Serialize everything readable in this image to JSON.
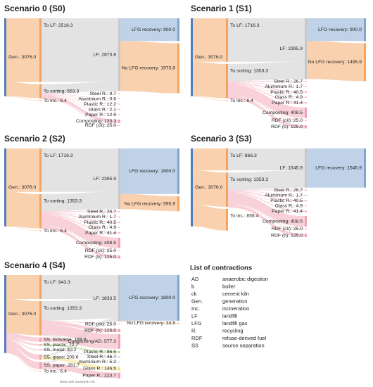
{
  "chart_data": [
    {
      "type": "sankey",
      "title": "Scenario 0 (S0)",
      "nodes": [
        {
          "label": "Gen.: 3076.0",
          "value": 3076.0,
          "color": "#4f7fbf"
        },
        {
          "label": "To LF: 2516.3",
          "value": 2516.3,
          "color": "#f4a460"
        },
        {
          "label": "To sorting: 553.3",
          "value": 553.3,
          "color": "#f4a460"
        },
        {
          "label": "To inc.: 6.4",
          "value": 6.4,
          "color": "#f4a460"
        },
        {
          "label": "LF: 2873.8",
          "value": 2873.8,
          "color": "#c8c8c8"
        },
        {
          "label": "LFG recovery: 900.0",
          "value": 900.0,
          "color": "#7fa6cf"
        },
        {
          "label": "No LFG recovery: 1973.8",
          "value": 1973.8,
          "color": "#f4a460"
        },
        {
          "label": "Steel R.: 9.7",
          "value": 9.7,
          "color": "#f2a3b3"
        },
        {
          "label": "Aluminium R.: 0.6",
          "value": 0.6,
          "color": "#f2a3b3"
        },
        {
          "label": "Plastic R.: 12.2",
          "value": 12.2,
          "color": "#f2a3b3"
        },
        {
          "label": "Glass R.: 2.1",
          "value": 2.1,
          "color": "#f2a3b3"
        },
        {
          "label": "Paper R.: 12.9",
          "value": 12.9,
          "color": "#f2a3b3"
        },
        {
          "label": "Composting: 133.3",
          "value": 133.3,
          "color": "#f2a3b3"
        },
        {
          "label": "RDF (ck): 25.0",
          "value": 25.0,
          "color": "#f2a3b3"
        }
      ],
      "links": [
        {
          "source": 0,
          "target": 1,
          "value": 2516.3
        },
        {
          "source": 0,
          "target": 2,
          "value": 553.3
        },
        {
          "source": 0,
          "target": 3,
          "value": 6.4
        },
        {
          "source": 1,
          "target": 4,
          "value": 2516.3
        },
        {
          "source": 2,
          "target": 4,
          "value": 357.5
        },
        {
          "source": 2,
          "target": 7,
          "value": 9.7
        },
        {
          "source": 2,
          "target": 8,
          "value": 0.6
        },
        {
          "source": 2,
          "target": 9,
          "value": 12.2
        },
        {
          "source": 2,
          "target": 10,
          "value": 2.1
        },
        {
          "source": 2,
          "target": 11,
          "value": 12.9
        },
        {
          "source": 2,
          "target": 12,
          "value": 133.3
        },
        {
          "source": 2,
          "target": 13,
          "value": 25.0
        },
        {
          "source": 4,
          "target": 5,
          "value": 900.0
        },
        {
          "source": 4,
          "target": 6,
          "value": 1973.8
        }
      ]
    },
    {
      "type": "sankey",
      "title": "Scenario 1 (S1)",
      "nodes": [
        {
          "label": "Gen.: 3076.0",
          "value": 3076.0,
          "color": "#4f7fbf"
        },
        {
          "label": "To LF: 1716.3",
          "value": 1716.3,
          "color": "#f4a460"
        },
        {
          "label": "To sorting: 1353.3",
          "value": 1353.3,
          "color": "#f4a460"
        },
        {
          "label": "To inc.: 6.4",
          "value": 6.4,
          "color": "#f4a460"
        },
        {
          "label": "LF: 2395.9",
          "value": 2395.9,
          "color": "#c8c8c8"
        },
        {
          "label": "LFG recovery: 900.0",
          "value": 900.0,
          "color": "#7fa6cf"
        },
        {
          "label": "No LFG recovery: 1495.9",
          "value": 1495.9,
          "color": "#f4a460"
        },
        {
          "label": "Steel R.: 26.7",
          "value": 26.7,
          "color": "#f2a3b3"
        },
        {
          "label": "Aluminium R.: 1.7",
          "value": 1.7,
          "color": "#f2a3b3"
        },
        {
          "label": "Plastic R.: 40.5",
          "value": 40.5,
          "color": "#f2a3b3"
        },
        {
          "label": "Glass R.: 4.9",
          "value": 4.9,
          "color": "#f2a3b3"
        },
        {
          "label": "Paper R.: 41.4",
          "value": 41.4,
          "color": "#f2a3b3"
        },
        {
          "label": "Composting: 408.5",
          "value": 408.5,
          "color": "#f2a3b3"
        },
        {
          "label": "RDF (ck): 25.0",
          "value": 25.0,
          "color": "#f2a3b3"
        },
        {
          "label": "RDF (b): 125.0",
          "value": 125.0,
          "color": "#f2a3b3"
        }
      ],
      "links": [
        {
          "source": 0,
          "target": 1,
          "value": 1716.3
        },
        {
          "source": 0,
          "target": 2,
          "value": 1353.3
        },
        {
          "source": 0,
          "target": 3,
          "value": 6.4
        },
        {
          "source": 1,
          "target": 4,
          "value": 1716.3
        },
        {
          "source": 2,
          "target": 4,
          "value": 679.6
        },
        {
          "source": 2,
          "target": 7,
          "value": 26.7
        },
        {
          "source": 2,
          "target": 8,
          "value": 1.7
        },
        {
          "source": 2,
          "target": 9,
          "value": 40.5
        },
        {
          "source": 2,
          "target": 10,
          "value": 4.9
        },
        {
          "source": 2,
          "target": 11,
          "value": 41.4
        },
        {
          "source": 2,
          "target": 12,
          "value": 408.5
        },
        {
          "source": 2,
          "target": 13,
          "value": 25.0
        },
        {
          "source": 2,
          "target": 14,
          "value": 125.0
        },
        {
          "source": 4,
          "target": 5,
          "value": 900.0
        },
        {
          "source": 4,
          "target": 6,
          "value": 1495.9
        }
      ]
    },
    {
      "type": "sankey",
      "title": "Scenario 2 (S2)",
      "nodes": [
        {
          "label": "Gen.: 3076.0",
          "value": 3076.0,
          "color": "#4f7fbf"
        },
        {
          "label": "To LF: 1716.3",
          "value": 1716.3,
          "color": "#f4a460"
        },
        {
          "label": "To sorting: 1353.3",
          "value": 1353.3,
          "color": "#f4a460"
        },
        {
          "label": "To inc.: 6.4",
          "value": 6.4,
          "color": "#f4a460"
        },
        {
          "label": "LF: 2395.9",
          "value": 2395.9,
          "color": "#c8c8c8"
        },
        {
          "label": "LFG recovery: 1800.0",
          "value": 1800.0,
          "color": "#7fa6cf"
        },
        {
          "label": "No LFG recovery: 595.9",
          "value": 595.9,
          "color": "#f4a460"
        },
        {
          "label": "Steel R.: 26.7",
          "value": 26.7,
          "color": "#f2a3b3"
        },
        {
          "label": "Aluminium R.: 1.7",
          "value": 1.7,
          "color": "#f2a3b3"
        },
        {
          "label": "Plastic R.: 40.5",
          "value": 40.5,
          "color": "#f2a3b3"
        },
        {
          "label": "Glass R.: 4.9",
          "value": 4.9,
          "color": "#f2a3b3"
        },
        {
          "label": "Paper R.: 41.4",
          "value": 41.4,
          "color": "#f2a3b3"
        },
        {
          "label": "Composting: 408.5",
          "value": 408.5,
          "color": "#f2a3b3"
        },
        {
          "label": "RDF (ck): 25.0",
          "value": 25.0,
          "color": "#f2a3b3"
        },
        {
          "label": "RDF (b): 125.0",
          "value": 125.0,
          "color": "#f2a3b3"
        }
      ],
      "links": [
        {
          "source": 0,
          "target": 1,
          "value": 1716.3
        },
        {
          "source": 0,
          "target": 2,
          "value": 1353.3
        },
        {
          "source": 0,
          "target": 3,
          "value": 6.4
        },
        {
          "source": 1,
          "target": 4,
          "value": 1716.3
        },
        {
          "source": 2,
          "target": 4,
          "value": 679.6
        },
        {
          "source": 2,
          "target": 7,
          "value": 26.7
        },
        {
          "source": 2,
          "target": 8,
          "value": 1.7
        },
        {
          "source": 2,
          "target": 9,
          "value": 40.5
        },
        {
          "source": 2,
          "target": 10,
          "value": 4.9
        },
        {
          "source": 2,
          "target": 11,
          "value": 41.4
        },
        {
          "source": 2,
          "target": 12,
          "value": 408.5
        },
        {
          "source": 2,
          "target": 13,
          "value": 25.0
        },
        {
          "source": 2,
          "target": 14,
          "value": 125.0
        },
        {
          "source": 4,
          "target": 5,
          "value": 1800.0
        },
        {
          "source": 4,
          "target": 6,
          "value": 595.9
        }
      ]
    },
    {
      "type": "sankey",
      "title": "Scenario 3 (S3)",
      "nodes": [
        {
          "label": "Gen.: 3076.0",
          "value": 3076.0,
          "color": "#4f7fbf"
        },
        {
          "label": "To LF: 866.3",
          "value": 866.3,
          "color": "#f4a460"
        },
        {
          "label": "To sorting: 1353.3",
          "value": 1353.3,
          "color": "#f4a460"
        },
        {
          "label": "To inc.: 856.4",
          "value": 856.4,
          "color": "#f4a460"
        },
        {
          "label": "LF: 1545.9",
          "value": 1545.9,
          "color": "#c8c8c8"
        },
        {
          "label": "LFG recovery: 1545.9",
          "value": 1545.9,
          "color": "#7fa6cf"
        },
        {
          "label": "Steel R.: 26.7",
          "value": 26.7,
          "color": "#f2a3b3"
        },
        {
          "label": "Aluminium R.: 1.7",
          "value": 1.7,
          "color": "#f2a3b3"
        },
        {
          "label": "Plastic R.: 40.5",
          "value": 40.5,
          "color": "#f2a3b3"
        },
        {
          "label": "Glass R.: 4.9",
          "value": 4.9,
          "color": "#f2a3b3"
        },
        {
          "label": "Paper R.: 41.4",
          "value": 41.4,
          "color": "#f2a3b3"
        },
        {
          "label": "Composting: 408.5",
          "value": 408.5,
          "color": "#f2a3b3"
        },
        {
          "label": "RDF (ck): 25.0",
          "value": 25.0,
          "color": "#f2a3b3"
        },
        {
          "label": "RDF (b): 125.0",
          "value": 125.0,
          "color": "#f2a3b3"
        }
      ],
      "links": [
        {
          "source": 0,
          "target": 1,
          "value": 866.3
        },
        {
          "source": 0,
          "target": 2,
          "value": 1353.3
        },
        {
          "source": 0,
          "target": 3,
          "value": 856.4
        },
        {
          "source": 1,
          "target": 4,
          "value": 866.3
        },
        {
          "source": 2,
          "target": 4,
          "value": 679.6
        },
        {
          "source": 2,
          "target": 6,
          "value": 26.7
        },
        {
          "source": 2,
          "target": 7,
          "value": 1.7
        },
        {
          "source": 2,
          "target": 8,
          "value": 40.5
        },
        {
          "source": 2,
          "target": 9,
          "value": 4.9
        },
        {
          "source": 2,
          "target": 10,
          "value": 41.4
        },
        {
          "source": 2,
          "target": 11,
          "value": 408.5
        },
        {
          "source": 2,
          "target": 12,
          "value": 25.0
        },
        {
          "source": 2,
          "target": 13,
          "value": 125.0
        },
        {
          "source": 4,
          "target": 5,
          "value": 1545.9
        }
      ]
    },
    {
      "type": "sankey",
      "title": "Scenario 4 (S4)",
      "credit": "Made with SankeyMATIC",
      "nodes": [
        {
          "label": "Gen.: 3076.0",
          "value": 3076.0,
          "color": "#4f7fbf"
        },
        {
          "label": "To LF: 943.3",
          "value": 943.3,
          "color": "#f4a460"
        },
        {
          "label": "To sorting: 1353.3",
          "value": 1353.3,
          "color": "#f4a460"
        },
        {
          "label": "SS, biowaste: 168.8",
          "value": 168.8,
          "color": "#f2a3b3"
        },
        {
          "label": "SS, plastic: 72.7",
          "value": 72.7,
          "color": "#f2a3b3"
        },
        {
          "label": "SS, metal: 40.2",
          "value": 40.2,
          "color": "#f2a3b3"
        },
        {
          "label": "SS, glass: 209.6",
          "value": 209.6,
          "color": "#f2a3b3"
        },
        {
          "label": "SS, paper: 281.7",
          "value": 281.7,
          "color": "#f2a3b3"
        },
        {
          "label": "To inc.: 6.4",
          "value": 6.4,
          "color": "#f4a460"
        },
        {
          "label": "LF: 1833.5",
          "value": 1833.5,
          "color": "#c8c8c8"
        },
        {
          "label": "LFG recovery: 1800.0",
          "value": 1800.0,
          "color": "#7fa6cf"
        },
        {
          "label": "No LFG recovery: 33.5",
          "value": 33.5,
          "color": "#f4a460"
        },
        {
          "label": "RDF (ck): 25.0",
          "value": 25.0,
          "color": "#f2a3b3"
        },
        {
          "label": "RDF (b): 125.0",
          "value": 125.0,
          "color": "#f2a3b3"
        },
        {
          "label": "Composting/AD: 577.3",
          "value": 577.3,
          "color": "#f2a3b3"
        },
        {
          "label": "Plastic R.: 86.5",
          "value": 86.5,
          "color": "#b5d98a"
        },
        {
          "label": "Steel R.: 46.7",
          "value": 46.7,
          "color": "#c8c8c8"
        },
        {
          "label": "Aluminium R.: 5.2",
          "value": 5.2,
          "color": "#c8c8c8"
        },
        {
          "label": "Glass R.: 146.5",
          "value": 146.5,
          "color": "#f2e08a"
        },
        {
          "label": "Paper R.: 223.7",
          "value": 223.7,
          "color": "#f2a3b3"
        }
      ],
      "links": [
        {
          "source": 0,
          "target": 1,
          "value": 943.3
        },
        {
          "source": 0,
          "target": 2,
          "value": 1353.3
        },
        {
          "source": 0,
          "target": 3,
          "value": 168.8
        },
        {
          "source": 0,
          "target": 4,
          "value": 72.7
        },
        {
          "source": 0,
          "target": 5,
          "value": 40.2
        },
        {
          "source": 0,
          "target": 6,
          "value": 209.6
        },
        {
          "source": 0,
          "target": 7,
          "value": 281.7
        },
        {
          "source": 0,
          "target": 8,
          "value": 6.4
        },
        {
          "source": 1,
          "target": 9,
          "value": 943.3
        },
        {
          "source": 2,
          "target": 9,
          "value": 769.3
        },
        {
          "source": 2,
          "target": 12,
          "value": 25.0
        },
        {
          "source": 2,
          "target": 13,
          "value": 125.0
        },
        {
          "source": 2,
          "target": 14,
          "value": 408.5
        },
        {
          "source": 2,
          "target": 15,
          "value": 13.8
        },
        {
          "source": 2,
          "target": 16,
          "value": 11.2
        },
        {
          "source": 2,
          "target": 17,
          "value": 0.5
        },
        {
          "source": 3,
          "target": 14,
          "value": 168.8
        },
        {
          "source": 4,
          "target": 15,
          "value": 72.7
        },
        {
          "source": 5,
          "target": 16,
          "value": 35.5
        },
        {
          "source": 5,
          "target": 17,
          "value": 4.7
        },
        {
          "source": 6,
          "target": 9,
          "value": 63.1
        },
        {
          "source": 6,
          "target": 18,
          "value": 146.5
        },
        {
          "source": 7,
          "target": 9,
          "value": 58.0
        },
        {
          "source": 7,
          "target": 19,
          "value": 223.7
        },
        {
          "source": 9,
          "target": 10,
          "value": 1800.0
        },
        {
          "source": 9,
          "target": 11,
          "value": 33.5
        }
      ]
    }
  ],
  "contractions": {
    "title": "List of contractions",
    "items": [
      {
        "abbr": "AD",
        "meaning": "anaerobic digestion"
      },
      {
        "abbr": "b",
        "meaning": "boiler"
      },
      {
        "abbr": "ck",
        "meaning": "cement kiln"
      },
      {
        "abbr": "Gen.",
        "meaning": "generation"
      },
      {
        "abbr": "Inc.",
        "meaning": "incineration"
      },
      {
        "abbr": "LF",
        "meaning": "landfill"
      },
      {
        "abbr": "LFG",
        "meaning": "landfill gas"
      },
      {
        "abbr": "R.",
        "meaning": "recycling"
      },
      {
        "abbr": "RDF",
        "meaning": "refuse-derived fuel"
      },
      {
        "abbr": "SS",
        "meaning": "source separation"
      }
    ]
  }
}
